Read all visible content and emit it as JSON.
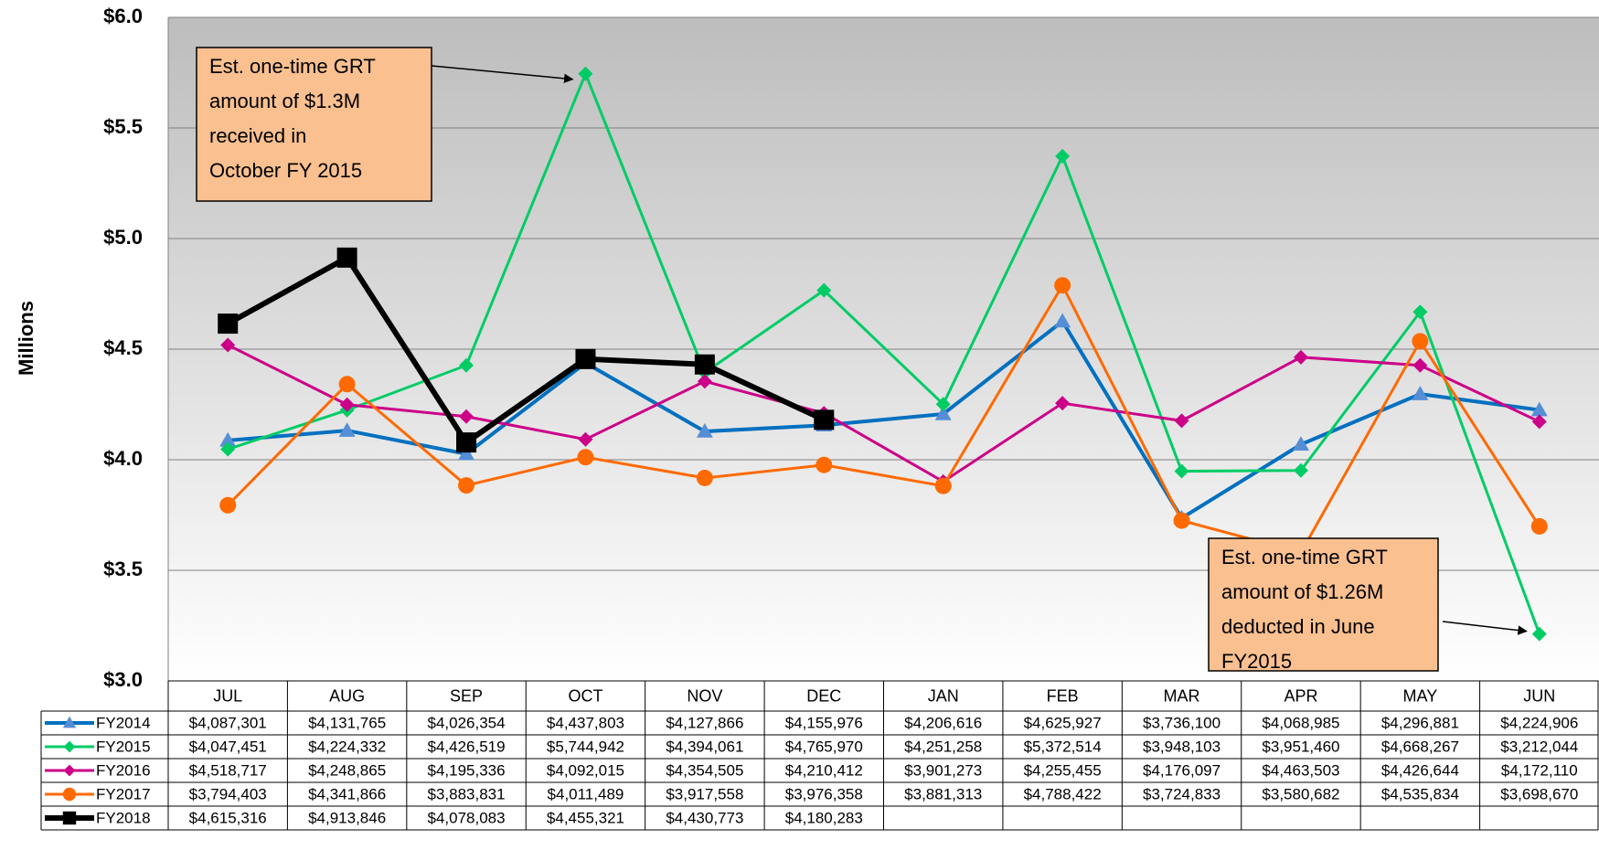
{
  "chart_data": {
    "type": "line",
    "y_label": "Millions",
    "categories": [
      "JUL",
      "AUG",
      "SEP",
      "OCT",
      "NOV",
      "DEC",
      "JAN",
      "FEB",
      "MAR",
      "APR",
      "MAY",
      "JUN"
    ],
    "series": [
      {
        "name": "FY2014",
        "color": "#0070c0",
        "marker": "triangle",
        "marker_color": "#558ed5",
        "values": [
          4.087301,
          4.131765,
          4.026354,
          4.437803,
          4.127866,
          4.155976,
          4.206616,
          4.625927,
          3.7361,
          4.068985,
          4.296881,
          4.224906
        ],
        "value_labels": [
          "$4,087,301",
          "$4,131,765",
          "$4,026,354",
          "$4,437,803",
          "$4,127,866",
          "$4,155,976",
          "$4,206,616",
          "$4,625,927",
          "$3,736,100",
          "$4,068,985",
          "$4,296,881",
          "$4,224,906"
        ]
      },
      {
        "name": "FY2015",
        "color": "#00cc66",
        "marker": "diamond",
        "marker_color": "#00cc66",
        "values": [
          4.047451,
          4.224332,
          4.426519,
          5.744942,
          4.394061,
          4.76597,
          4.251258,
          5.372514,
          3.948103,
          3.95146,
          4.668267,
          3.212044
        ],
        "value_labels": [
          "$4,047,451",
          "$4,224,332",
          "$4,426,519",
          "$5,744,942",
          "$4,394,061",
          "$4,765,970",
          "$4,251,258",
          "$5,372,514",
          "$3,948,103",
          "$3,951,460",
          "$4,668,267",
          "$3,212,044"
        ]
      },
      {
        "name": "FY2016",
        "color": "#cc0088",
        "marker": "diamond",
        "marker_color": "#cc0088",
        "values": [
          4.518717,
          4.248865,
          4.195336,
          4.092015,
          4.354505,
          4.210412,
          3.901273,
          4.255455,
          4.176097,
          4.463503,
          4.426644,
          4.17211
        ],
        "value_labels": [
          "$4,518,717",
          "$4,248,865",
          "$4,195,336",
          "$4,092,015",
          "$4,354,505",
          "$4,210,412",
          "$3,901,273",
          "$4,255,455",
          "$4,176,097",
          "$4,463,503",
          "$4,426,644",
          "$4,172,110"
        ]
      },
      {
        "name": "FY2017",
        "color": "#ff6a00",
        "marker": "circle",
        "marker_color": "#ff6a00",
        "values": [
          3.794403,
          4.341866,
          3.883831,
          4.011489,
          3.917558,
          3.976358,
          3.881313,
          4.788422,
          3.724833,
          3.580682,
          4.535834,
          3.69867
        ],
        "value_labels": [
          "$3,794,403",
          "$4,341,866",
          "$3,883,831",
          "$4,011,489",
          "$3,917,558",
          "$3,976,358",
          "$3,881,313",
          "$4,788,422",
          "$3,724,833",
          "$3,580,682",
          "$4,535,834",
          "$3,698,670"
        ]
      },
      {
        "name": "FY2018",
        "color": "#000000",
        "marker": "square",
        "marker_color": "#000000",
        "values": [
          4.615316,
          4.913846,
          4.078083,
          4.455321,
          4.430773,
          4.180283,
          null,
          null,
          null,
          null,
          null,
          null
        ],
        "value_labels": [
          "$4,615,316",
          "$4,913,846",
          "$4,078,083",
          "$4,455,321",
          "$4,430,773",
          "$4,180,283",
          null,
          null,
          null,
          null,
          null,
          null
        ]
      }
    ],
    "ylim": [
      3,
      6
    ],
    "yticks": [
      {
        "value": 3,
        "label": "$3.0"
      },
      {
        "value": 3.5,
        "label": "$3.5"
      },
      {
        "value": 4,
        "label": "$4.0"
      },
      {
        "value": 4.5,
        "label": "$4.5"
      },
      {
        "value": 5,
        "label": "$5.0"
      },
      {
        "value": 5.5,
        "label": "$5.5"
      },
      {
        "value": 6,
        "label": "$6.0"
      }
    ],
    "grid": true,
    "annotations": [
      {
        "lines": [
          "Est. one-time GRT",
          "amount of $1.3M",
          "received in",
          "October FY 2015"
        ]
      },
      {
        "lines": [
          "Est. one-time GRT",
          "amount of $1.26M",
          "deducted in June",
          "FY2015"
        ]
      }
    ]
  }
}
